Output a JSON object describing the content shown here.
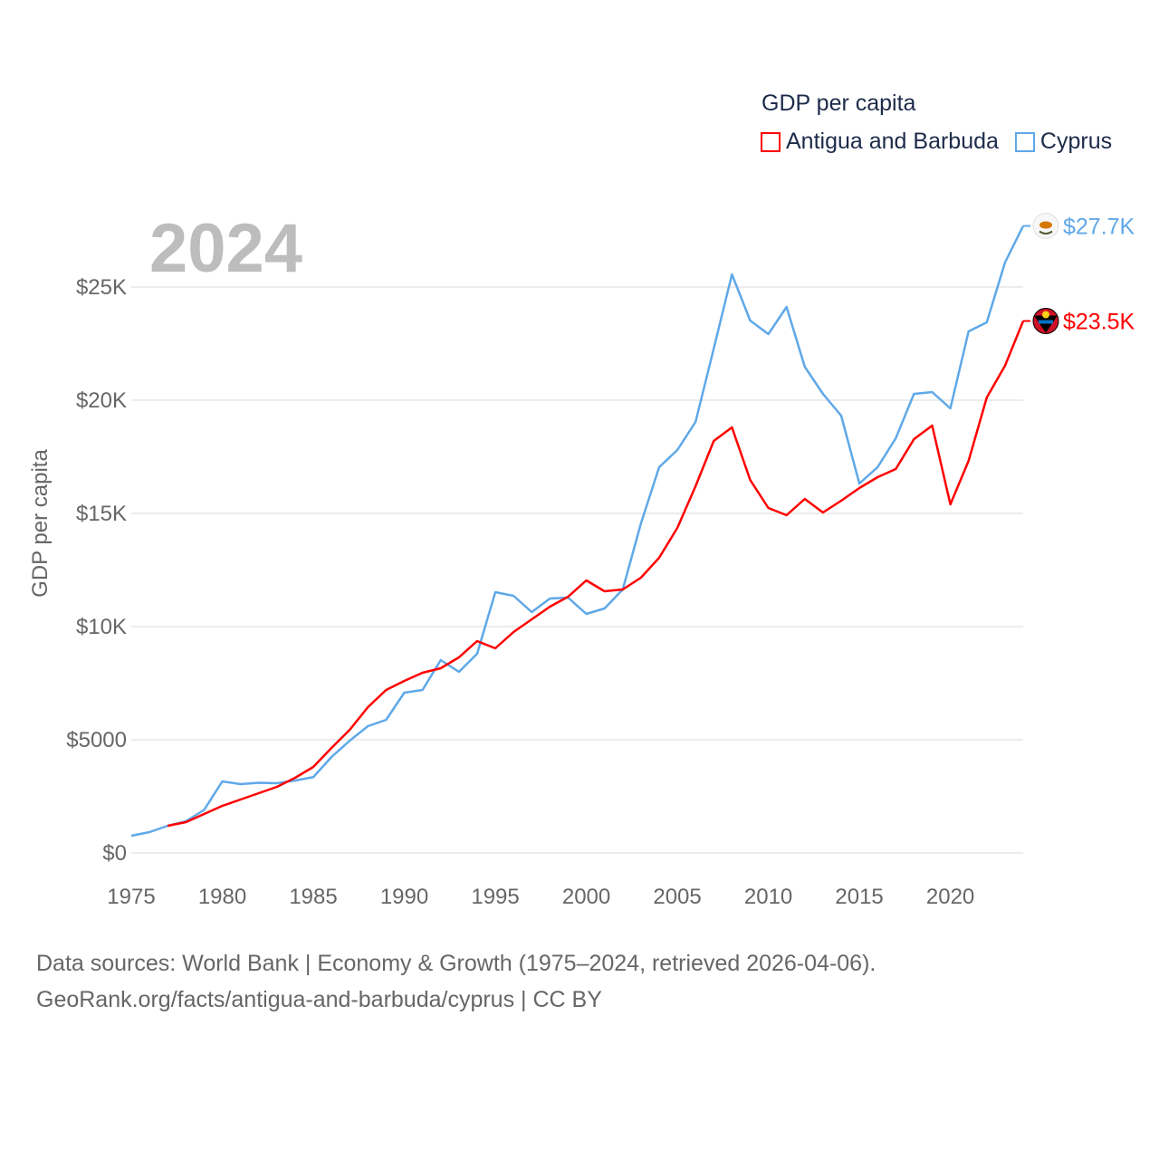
{
  "chart_data": {
    "type": "line",
    "title": "GDP per capita",
    "year_label": "2024",
    "xlabel": "",
    "ylabel": "GDP per capita",
    "xlim": [
      1975,
      2024
    ],
    "ylim": [
      0,
      27700
    ],
    "x_ticks": [
      1975,
      1980,
      1985,
      1990,
      1995,
      2000,
      2005,
      2010,
      2015,
      2020
    ],
    "x_tick_labels": [
      "1975",
      "1980",
      "1985",
      "1990",
      "1995",
      "2000",
      "2005",
      "2010",
      "2015",
      "2020"
    ],
    "y_ticks": [
      0,
      5000,
      10000,
      15000,
      20000,
      25000
    ],
    "y_tick_labels": [
      "$0",
      "$5000",
      "$10K",
      "$15K",
      "$20K",
      "$25K"
    ],
    "grid": true,
    "legend_placement": "top-right",
    "series": [
      {
        "name": "Antigua and Barbuda",
        "color": "#ff0000",
        "end_label": "$23.5K",
        "x": [
          1977,
          1978,
          1979,
          1980,
          1981,
          1982,
          1983,
          1984,
          1985,
          1986,
          1987,
          1988,
          1989,
          1990,
          1991,
          1992,
          1993,
          1994,
          1995,
          1996,
          1997,
          1998,
          1999,
          2000,
          2001,
          2002,
          2003,
          2004,
          2005,
          2006,
          2007,
          2008,
          2009,
          2010,
          2011,
          2012,
          2013,
          2014,
          2015,
          2016,
          2017,
          2018,
          2019,
          2020,
          2021,
          2022,
          2023,
          2024
        ],
        "values": [
          1200,
          1360,
          1720,
          2080,
          2360,
          2640,
          2920,
          3320,
          3800,
          4640,
          5440,
          6440,
          7200,
          7600,
          7960,
          8160,
          8640,
          9360,
          9040,
          9760,
          10320,
          10880,
          11320,
          12040,
          11560,
          11640,
          12160,
          13040,
          14360,
          16200,
          18200,
          18800,
          16480,
          15240,
          14920,
          15640,
          15040,
          15560,
          16120,
          16600,
          16960,
          18280,
          18880,
          15400,
          17320,
          20120,
          21520,
          23500
        ]
      },
      {
        "name": "Cyprus",
        "color": "#5fa8e8",
        "end_label": "$27.7K",
        "x": [
          1975,
          1976,
          1977,
          1978,
          1979,
          1980,
          1981,
          1982,
          1983,
          1984,
          1985,
          1986,
          1987,
          1988,
          1989,
          1990,
          1991,
          1992,
          1993,
          1994,
          1995,
          1996,
          1997,
          1998,
          1999,
          2000,
          2001,
          2002,
          2003,
          2004,
          2005,
          2006,
          2007,
          2008,
          2009,
          2010,
          2011,
          2012,
          2013,
          2014,
          2015,
          2016,
          2017,
          2018,
          2019,
          2020,
          2021,
          2022,
          2023,
          2024
        ],
        "values": [
          760,
          920,
          1200,
          1400,
          1900,
          3160,
          3040,
          3100,
          3080,
          3200,
          3350,
          4240,
          4960,
          5600,
          5880,
          7080,
          7200,
          8520,
          8000,
          8800,
          11520,
          11360,
          10640,
          11240,
          11280,
          10560,
          10800,
          11640,
          14560,
          17040,
          17800,
          19040,
          22280,
          25560,
          23520,
          22920,
          24120,
          21480,
          20280,
          19320,
          16320,
          17040,
          18320,
          20280,
          20360,
          19640,
          23040,
          23440,
          26080,
          27700
        ]
      }
    ]
  },
  "footer": {
    "line1": "Data sources: World Bank | Economy & Growth (1975–2024, retrieved 2026-04-06).",
    "line2": "GeoRank.org/facts/antigua-and-barbuda/cyprus | CC BY"
  }
}
